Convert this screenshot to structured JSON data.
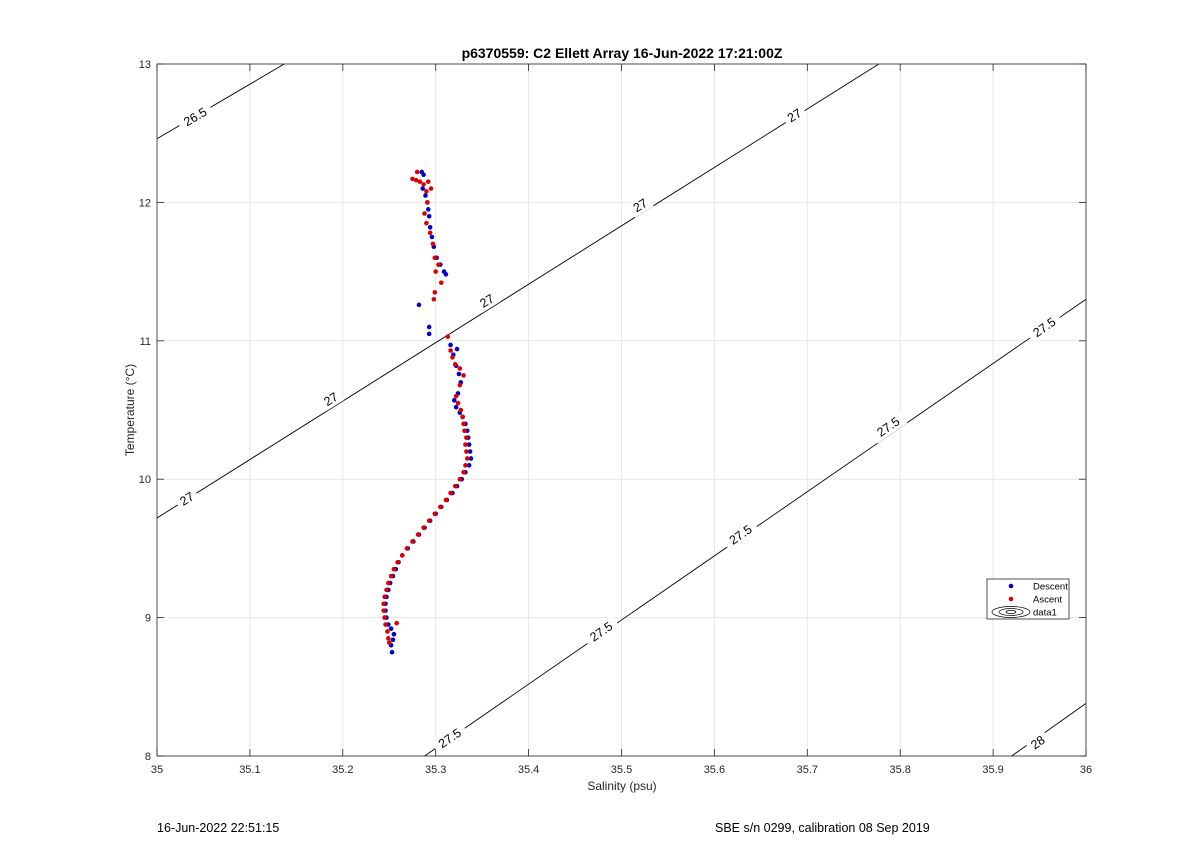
{
  "chart_data": {
    "type": "scatter",
    "title": "p6370559: C2 Ellett Array 16-Jun-2022 17:21:00Z",
    "xlabel": "Salinity (psu)",
    "ylabel": "Temperature (°C)",
    "xlim": [
      35,
      36
    ],
    "ylim": [
      8,
      13
    ],
    "grid": true,
    "xticks": [
      35,
      35.1,
      35.2,
      35.3,
      35.4,
      35.5,
      35.6,
      35.7,
      35.8,
      35.9,
      36
    ],
    "xtick_labels": [
      "35",
      "35.1",
      "35.2",
      "35.3",
      "35.4",
      "35.5",
      "35.6",
      "35.7",
      "35.8",
      "35.9",
      "36"
    ],
    "yticks": [
      8,
      9,
      10,
      11,
      12,
      13
    ],
    "ytick_labels": [
      "8",
      "9",
      "10",
      "11",
      "12",
      "13"
    ],
    "legend_position": "right",
    "legend": [
      {
        "label": "Descent",
        "color": "#0000cc",
        "marker": "dot"
      },
      {
        "label": "Ascent",
        "color": "#dd0000",
        "marker": "dot"
      },
      {
        "label": "data1",
        "marker": "contour"
      }
    ],
    "series": [
      {
        "name": "Descent",
        "color": "#0000cc",
        "points": [
          [
            35.285,
            12.22
          ],
          [
            35.287,
            12.2
          ],
          [
            35.286,
            12.1
          ],
          [
            35.289,
            12.05
          ],
          [
            35.291,
            12.0
          ],
          [
            35.292,
            11.95
          ],
          [
            35.293,
            11.9
          ],
          [
            35.294,
            11.82
          ],
          [
            35.296,
            11.75
          ],
          [
            35.298,
            11.68
          ],
          [
            35.301,
            11.6
          ],
          [
            35.305,
            11.55
          ],
          [
            35.309,
            11.5
          ],
          [
            35.311,
            11.48
          ],
          [
            35.282,
            11.26
          ],
          [
            35.293,
            11.1
          ],
          [
            35.293,
            11.05
          ],
          [
            35.316,
            10.97
          ],
          [
            35.323,
            10.94
          ],
          [
            35.319,
            10.9
          ],
          [
            35.322,
            10.82
          ],
          [
            35.325,
            10.76
          ],
          [
            35.327,
            10.7
          ],
          [
            35.324,
            10.62
          ],
          [
            35.32,
            10.57
          ],
          [
            35.322,
            10.52
          ],
          [
            35.326,
            10.48
          ],
          [
            35.329,
            10.45
          ],
          [
            35.332,
            10.4
          ],
          [
            35.334,
            10.35
          ],
          [
            35.335,
            10.3
          ],
          [
            35.336,
            10.25
          ],
          [
            35.337,
            10.2
          ],
          [
            35.338,
            10.15
          ],
          [
            35.336,
            10.1
          ],
          [
            35.332,
            10.05
          ],
          [
            35.328,
            10.0
          ],
          [
            35.323,
            9.95
          ],
          [
            35.318,
            9.9
          ],
          [
            35.312,
            9.85
          ],
          [
            35.306,
            9.8
          ],
          [
            35.3,
            9.75
          ],
          [
            35.294,
            9.7
          ],
          [
            35.288,
            9.65
          ],
          [
            35.282,
            9.6
          ],
          [
            35.276,
            9.55
          ],
          [
            35.27,
            9.5
          ],
          [
            35.264,
            9.45
          ],
          [
            35.26,
            9.4
          ],
          [
            35.257,
            9.35
          ],
          [
            35.254,
            9.3
          ],
          [
            35.251,
            9.25
          ],
          [
            35.249,
            9.2
          ],
          [
            35.247,
            9.15
          ],
          [
            35.246,
            9.1
          ],
          [
            35.246,
            9.05
          ],
          [
            35.247,
            9.0
          ],
          [
            35.249,
            8.95
          ],
          [
            35.252,
            8.92
          ],
          [
            35.255,
            8.88
          ],
          [
            35.254,
            8.84
          ],
          [
            35.252,
            8.8
          ],
          [
            35.253,
            8.75
          ]
        ]
      },
      {
        "name": "Ascent",
        "color": "#dd0000",
        "points": [
          [
            35.28,
            12.22
          ],
          [
            35.275,
            12.17
          ],
          [
            35.279,
            12.16
          ],
          [
            35.283,
            12.15
          ],
          [
            35.287,
            12.13
          ],
          [
            35.292,
            12.15
          ],
          [
            35.295,
            12.1
          ],
          [
            35.29,
            12.08
          ],
          [
            35.291,
            12.0
          ],
          [
            35.288,
            11.92
          ],
          [
            35.29,
            11.85
          ],
          [
            35.294,
            11.78
          ],
          [
            35.297,
            11.7
          ],
          [
            35.299,
            11.6
          ],
          [
            35.303,
            11.55
          ],
          [
            35.3,
            11.5
          ],
          [
            35.306,
            11.42
          ],
          [
            35.299,
            11.35
          ],
          [
            35.298,
            11.3
          ],
          [
            35.313,
            11.03
          ],
          [
            35.316,
            10.93
          ],
          [
            35.318,
            10.88
          ],
          [
            35.321,
            10.83
          ],
          [
            35.326,
            10.8
          ],
          [
            35.33,
            10.75
          ],
          [
            35.326,
            10.68
          ],
          [
            35.322,
            10.6
          ],
          [
            35.324,
            10.55
          ],
          [
            35.327,
            10.5
          ],
          [
            35.329,
            10.45
          ],
          [
            35.33,
            10.4
          ],
          [
            35.331,
            10.35
          ],
          [
            35.333,
            10.3
          ],
          [
            35.332,
            10.25
          ],
          [
            35.333,
            10.2
          ],
          [
            35.334,
            10.15
          ],
          [
            35.332,
            10.1
          ],
          [
            35.33,
            10.05
          ],
          [
            35.326,
            10.0
          ],
          [
            35.321,
            9.95
          ],
          [
            35.316,
            9.9
          ],
          [
            35.311,
            9.85
          ],
          [
            35.305,
            9.8
          ],
          [
            35.299,
            9.75
          ],
          [
            35.293,
            9.7
          ],
          [
            35.287,
            9.65
          ],
          [
            35.281,
            9.6
          ],
          [
            35.275,
            9.55
          ],
          [
            35.269,
            9.5
          ],
          [
            35.264,
            9.45
          ],
          [
            35.259,
            9.4
          ],
          [
            35.255,
            9.35
          ],
          [
            35.252,
            9.3
          ],
          [
            35.249,
            9.25
          ],
          [
            35.247,
            9.2
          ],
          [
            35.245,
            9.15
          ],
          [
            35.244,
            9.1
          ],
          [
            35.244,
            9.05
          ],
          [
            35.245,
            9.0
          ],
          [
            35.246,
            8.95
          ],
          [
            35.248,
            8.9
          ],
          [
            35.249,
            8.85
          ],
          [
            35.25,
            8.82
          ],
          [
            35.258,
            8.96
          ]
        ]
      }
    ],
    "contours": [
      {
        "label": "26.5",
        "points": [
          [
            35.0,
            12.46
          ],
          [
            35.137,
            13.0
          ]
        ],
        "label_positions": [
          [
            35.041,
            12.62
          ]
        ]
      },
      {
        "label": "27",
        "points": [
          [
            35.0,
            9.72
          ],
          [
            35.777,
            13.0
          ]
        ],
        "label_positions": [
          [
            35.032,
            9.86
          ],
          [
            35.187,
            10.58
          ],
          [
            35.355,
            11.29
          ],
          [
            35.52,
            11.98
          ],
          [
            35.686,
            12.63
          ]
        ]
      },
      {
        "label": "27.5",
        "points": [
          [
            35.288,
            8.0
          ],
          [
            36.0,
            11.3
          ]
        ],
        "label_positions": [
          [
            35.315,
            8.13
          ],
          [
            35.478,
            8.9
          ],
          [
            35.628,
            9.6
          ],
          [
            35.787,
            10.38
          ],
          [
            35.955,
            11.1
          ]
        ]
      },
      {
        "label": "28",
        "points": [
          [
            35.92,
            8.0
          ],
          [
            36.0,
            8.38
          ]
        ],
        "label_positions": [
          [
            35.948,
            8.1
          ]
        ]
      }
    ]
  },
  "footer": {
    "timestamp": "16-Jun-2022 22:51:15",
    "instrument": "SBE s/n 0299, calibration 08 Sep 2019"
  }
}
